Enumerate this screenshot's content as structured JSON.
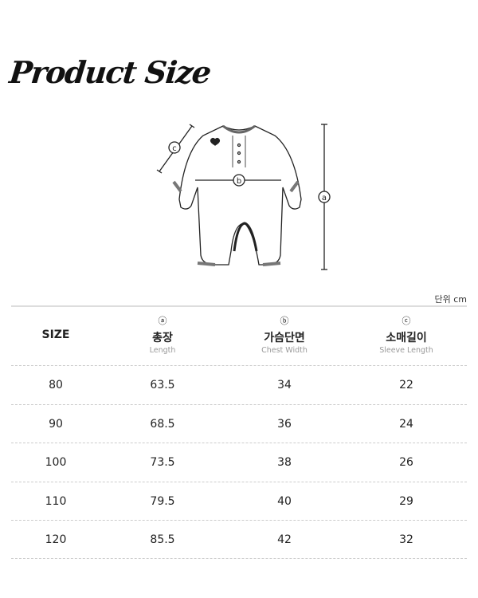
{
  "title": "Product Size",
  "diagram": {
    "labels": [
      "a",
      "b",
      "c"
    ]
  },
  "unit_label": "단위 cm",
  "table": {
    "columns": [
      {
        "mark": "",
        "label": "SIZE",
        "sub": ""
      },
      {
        "mark": "ⓐ",
        "label": "총장",
        "sub": "Length"
      },
      {
        "mark": "ⓑ",
        "label": "가슴단면",
        "sub": "Chest Width"
      },
      {
        "mark": "ⓒ",
        "label": "소매길이",
        "sub": "Sleeve Length"
      }
    ],
    "rows": [
      [
        "80",
        "63.5",
        "34",
        "22"
      ],
      [
        "90",
        "68.5",
        "36",
        "24"
      ],
      [
        "100",
        "73.5",
        "38",
        "26"
      ],
      [
        "110",
        "79.5",
        "40",
        "29"
      ],
      [
        "120",
        "85.5",
        "42",
        "32"
      ]
    ]
  }
}
